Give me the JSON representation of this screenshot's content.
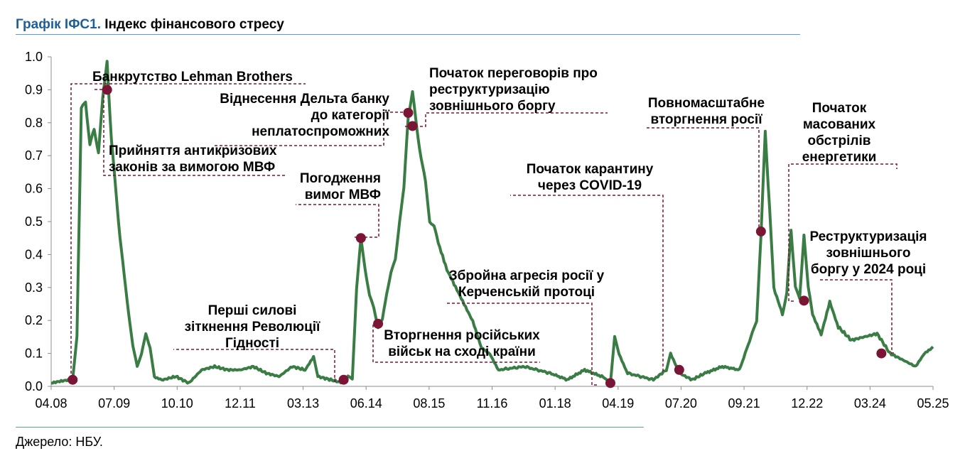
{
  "header": {
    "label": "Графік ІФС1.",
    "title": "Індекс фінансового стресу"
  },
  "footer": {
    "source": "Джерело: НБУ."
  },
  "colors": {
    "line": "#3a7d44",
    "marker": "#7b1535",
    "guide": "#7b1535",
    "rule": "#5b9bd5"
  },
  "chart_data": {
    "type": "line",
    "title": "Індекс фінансового стресу",
    "ylim": [
      0,
      1
    ],
    "yticks": [
      "0.0",
      "0.1",
      "0.2",
      "0.3",
      "0.4",
      "0.5",
      "0.6",
      "0.7",
      "0.8",
      "0.9",
      "1.0"
    ],
    "xlim": [
      "2008-04",
      "2025-05"
    ],
    "xticks": [
      "04.08",
      "07.09",
      "10.10",
      "12.11",
      "03.13",
      "06.14",
      "08.15",
      "11.16",
      "01.18",
      "04.19",
      "07.20",
      "09.21",
      "12.22",
      "03.24",
      "05.25"
    ],
    "grid": false,
    "series": [
      {
        "points": [
          [
            "2008-04",
            0.01
          ],
          [
            "2008-09",
            0.02
          ],
          [
            "2008-10",
            0.15
          ],
          [
            "2008-11",
            0.83
          ],
          [
            "2008-12",
            0.86
          ],
          [
            "2009-01",
            0.73
          ],
          [
            "2009-02",
            0.78
          ],
          [
            "2009-03",
            0.72
          ],
          [
            "2009-04",
            0.88
          ],
          [
            "2009-05",
            1.0
          ],
          [
            "2009-06",
            0.75
          ],
          [
            "2009-07",
            0.6
          ],
          [
            "2009-08",
            0.45
          ],
          [
            "2009-09",
            0.33
          ],
          [
            "2009-10",
            0.22
          ],
          [
            "2009-11",
            0.12
          ],
          [
            "2009-12",
            0.06
          ],
          [
            "2010-01",
            0.1
          ],
          [
            "2010-02",
            0.16
          ],
          [
            "2010-03",
            0.12
          ],
          [
            "2010-04",
            0.03
          ],
          [
            "2010-06",
            0.02
          ],
          [
            "2010-09",
            0.03
          ],
          [
            "2010-12",
            0.01
          ],
          [
            "2011-03",
            0.05
          ],
          [
            "2011-06",
            0.06
          ],
          [
            "2011-09",
            0.05
          ],
          [
            "2011-12",
            0.05
          ],
          [
            "2012-03",
            0.06
          ],
          [
            "2012-06",
            0.04
          ],
          [
            "2012-09",
            0.03
          ],
          [
            "2012-12",
            0.06
          ],
          [
            "2013-03",
            0.05
          ],
          [
            "2013-05",
            0.09
          ],
          [
            "2013-06",
            0.03
          ],
          [
            "2013-09",
            0.02
          ],
          [
            "2013-12",
            0.01
          ],
          [
            "2014-01",
            0.03
          ],
          [
            "2014-02",
            0.02
          ],
          [
            "2014-03",
            0.3
          ],
          [
            "2014-04",
            0.45
          ],
          [
            "2014-05",
            0.36
          ],
          [
            "2014-06",
            0.28
          ],
          [
            "2014-07",
            0.24
          ],
          [
            "2014-08",
            0.18
          ],
          [
            "2014-09",
            0.2
          ],
          [
            "2014-10",
            0.28
          ],
          [
            "2014-11",
            0.34
          ],
          [
            "2014-12",
            0.38
          ],
          [
            "2015-01",
            0.5
          ],
          [
            "2015-02",
            0.6
          ],
          [
            "2015-03",
            0.83
          ],
          [
            "2015-04",
            0.9
          ],
          [
            "2015-05",
            0.79
          ],
          [
            "2015-06",
            0.7
          ],
          [
            "2015-07",
            0.62
          ],
          [
            "2015-08",
            0.5
          ],
          [
            "2015-09",
            0.48
          ],
          [
            "2015-10",
            0.43
          ],
          [
            "2015-12",
            0.35
          ],
          [
            "2016-02",
            0.3
          ],
          [
            "2016-04",
            0.25
          ],
          [
            "2016-06",
            0.2
          ],
          [
            "2016-08",
            0.12
          ],
          [
            "2016-10",
            0.1
          ],
          [
            "2016-12",
            0.05
          ],
          [
            "2017-06",
            0.06
          ],
          [
            "2017-12",
            0.04
          ],
          [
            "2018-04",
            0.02
          ],
          [
            "2018-08",
            0.05
          ],
          [
            "2018-12",
            0.03
          ],
          [
            "2019-02",
            0.01
          ],
          [
            "2019-03",
            0.15
          ],
          [
            "2019-04",
            0.1
          ],
          [
            "2019-06",
            0.04
          ],
          [
            "2019-12",
            0.02
          ],
          [
            "2020-03",
            0.05
          ],
          [
            "2020-04",
            0.1
          ],
          [
            "2020-06",
            0.04
          ],
          [
            "2020-09",
            0.02
          ],
          [
            "2020-12",
            0.04
          ],
          [
            "2021-04",
            0.06
          ],
          [
            "2021-08",
            0.05
          ],
          [
            "2021-12",
            0.2
          ],
          [
            "2022-01",
            0.46
          ],
          [
            "2022-02",
            0.78
          ],
          [
            "2022-03",
            0.55
          ],
          [
            "2022-04",
            0.3
          ],
          [
            "2022-06",
            0.22
          ],
          [
            "2022-07",
            0.28
          ],
          [
            "2022-08",
            0.47
          ],
          [
            "2022-09",
            0.3
          ],
          [
            "2022-10",
            0.26
          ],
          [
            "2022-11",
            0.46
          ],
          [
            "2022-12",
            0.3
          ],
          [
            "2023-01",
            0.22
          ],
          [
            "2023-03",
            0.16
          ],
          [
            "2023-05",
            0.26
          ],
          [
            "2023-07",
            0.18
          ],
          [
            "2023-10",
            0.14
          ],
          [
            "2024-01",
            0.15
          ],
          [
            "2024-04",
            0.16
          ],
          [
            "2024-07",
            0.1
          ],
          [
            "2024-10",
            0.08
          ],
          [
            "2025-01",
            0.06
          ],
          [
            "2025-03",
            0.1
          ],
          [
            "2025-05",
            0.12
          ]
        ]
      }
    ],
    "events": [
      {
        "date": "2008-09",
        "value": 0.02
      },
      {
        "date": "2009-05",
        "value": 0.9
      },
      {
        "date": "2013-12",
        "value": 0.02
      },
      {
        "date": "2014-04",
        "value": 0.45
      },
      {
        "date": "2014-08",
        "value": 0.19
      },
      {
        "date": "2015-03",
        "value": 0.83
      },
      {
        "date": "2015-04",
        "value": 0.79
      },
      {
        "date": "2019-02",
        "value": 0.01
      },
      {
        "date": "2020-06",
        "value": 0.05
      },
      {
        "date": "2022-01",
        "value": 0.47
      },
      {
        "date": "2022-11",
        "value": 0.26
      },
      {
        "date": "2024-05",
        "value": 0.1
      }
    ],
    "annotations": [
      {
        "id": "lehman",
        "lines": [
          "Банкрутство Lehman Brothers"
        ]
      },
      {
        "id": "imf_law",
        "lines": [
          "Прийняття антикризових",
          "законів за вимогою МВФ"
        ]
      },
      {
        "id": "delta",
        "lines": [
          "Віднесення Дельта банку",
          "до категорії",
          "неплатоспроможних"
        ]
      },
      {
        "id": "imf_agree",
        "lines": [
          "Погодження",
          "вимог МВФ"
        ]
      },
      {
        "id": "restructure_start",
        "lines": [
          "Початок переговорів про",
          "реструктуризацію",
          "зовнішнього боргу"
        ]
      },
      {
        "id": "revolution",
        "lines": [
          "Перші силові",
          "зіткнення Революції",
          "Гідності"
        ]
      },
      {
        "id": "invasion_east",
        "lines": [
          "Вторгнення російських",
          "військ на сході країни"
        ]
      },
      {
        "id": "kerch",
        "lines": [
          "Збройна агресія росії у",
          "Керченській протоці"
        ]
      },
      {
        "id": "covid",
        "lines": [
          "Початок карантину",
          "через COVID-19"
        ]
      },
      {
        "id": "fullscale",
        "lines": [
          "Повномасштабне",
          "вторгнення росії"
        ]
      },
      {
        "id": "energy",
        "lines": [
          "Початок",
          "масованих",
          "обстрілів",
          "енергетики"
        ]
      },
      {
        "id": "restructure_2024",
        "lines": [
          "Реструктуризація",
          "зовнішнього",
          "боргу у 2024 році"
        ]
      }
    ]
  }
}
